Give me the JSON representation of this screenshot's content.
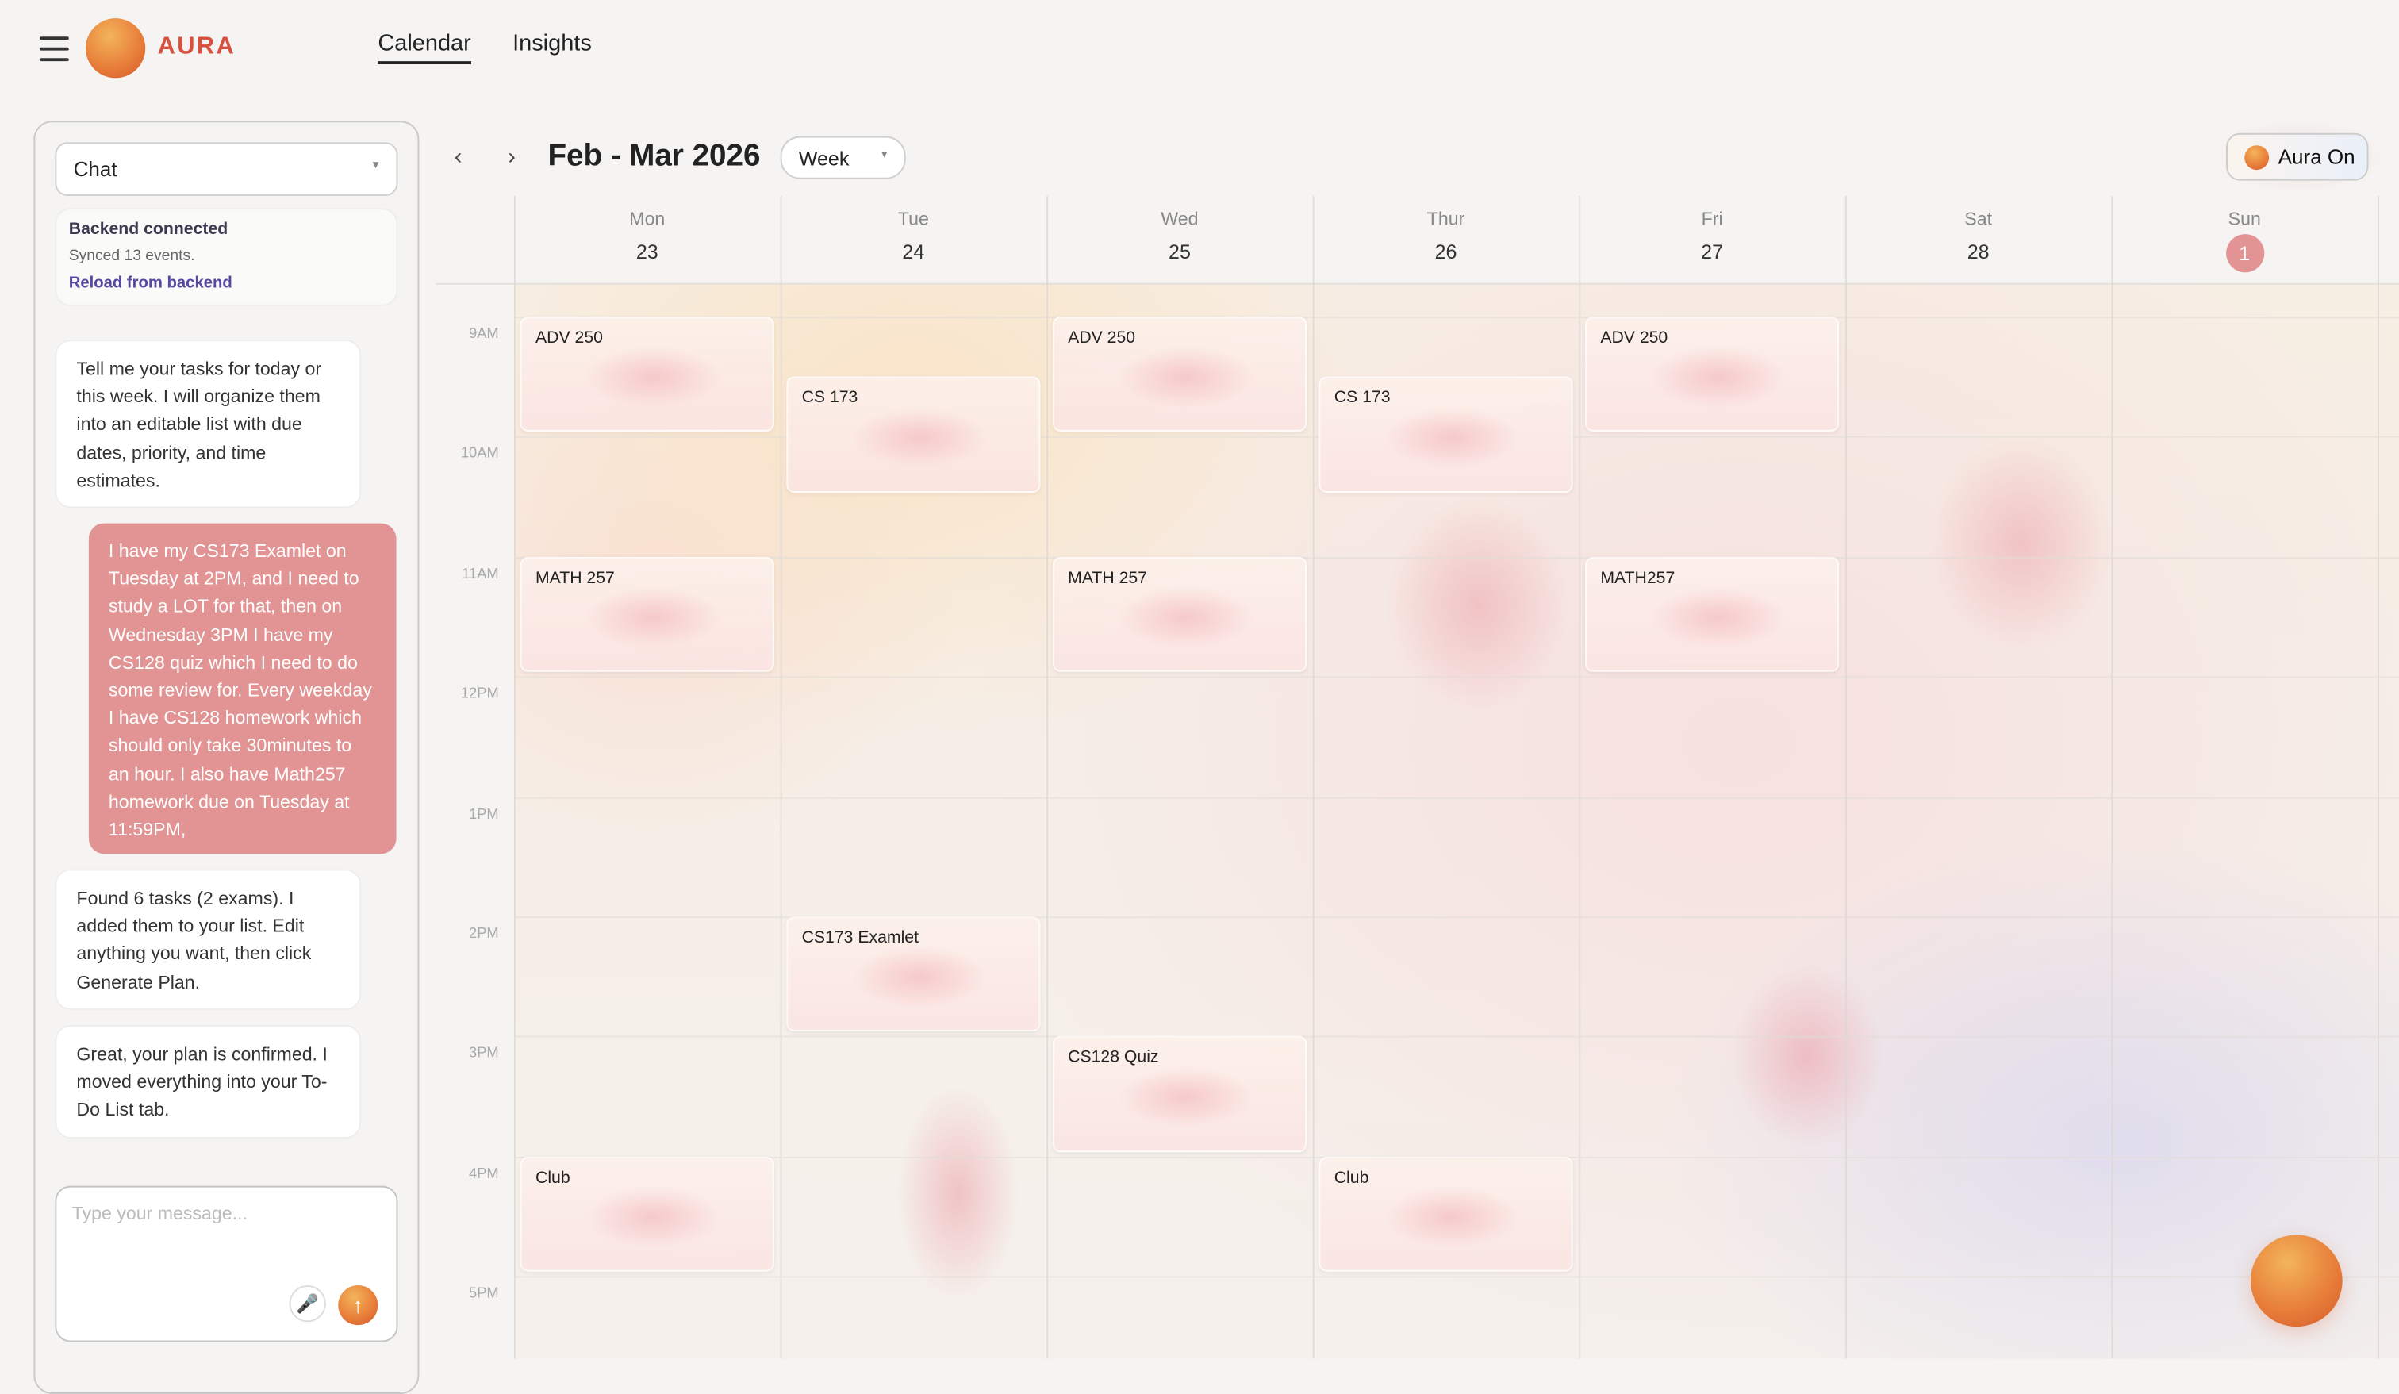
{
  "app": {
    "brand": "AURA",
    "menu_icon": "hamburger-icon"
  },
  "nav": {
    "tabs": [
      {
        "label": "Calendar",
        "active": true
      },
      {
        "label": "Insights",
        "active": false
      }
    ]
  },
  "chat": {
    "mode_select": "Chat",
    "status": {
      "title": "Backend connected",
      "detail": "Synced 13 events.",
      "reload": "Reload from backend"
    },
    "messages": [
      {
        "role": "assistant",
        "text": "Tell me your tasks for today or this week. I will organize them into an editable list with due dates, priority, and time estimates."
      },
      {
        "role": "user",
        "text": "I have my CS173 Examlet on Tuesday at 2PM, and I need to study a LOT for that, then on Wednesday 3PM I have my CS128 quiz which I need to do some review for. Every weekday I have CS128 homework which should only take 30minutes to an hour. I also have Math257 homework due on Tuesday at 11:59PM,"
      },
      {
        "role": "assistant",
        "text": "Found 6 tasks (2 exams). I added them to your list. Edit anything you want, then click Generate Plan."
      },
      {
        "role": "assistant",
        "text": "Great, your plan is confirmed. I moved everything into your To-Do List tab."
      }
    ],
    "input": {
      "value": "",
      "placeholder": "Type your message..."
    },
    "mic_icon": "microphone-icon",
    "send_icon": "arrow-up-icon",
    "mic_glyph": "🎤",
    "send_glyph": "↑"
  },
  "calendar": {
    "prev": "‹",
    "next": "›",
    "range_title": "Feb - Mar 2026",
    "view": "Week",
    "aura_toggle": "Aura On",
    "days": [
      {
        "name": "Mon",
        "date": "23"
      },
      {
        "name": "Tue",
        "date": "24"
      },
      {
        "name": "Wed",
        "date": "25"
      },
      {
        "name": "Thur",
        "date": "26"
      },
      {
        "name": "Fri",
        "date": "27"
      },
      {
        "name": "Sat",
        "date": "28"
      },
      {
        "name": "Sun",
        "date": "1",
        "today": true
      }
    ],
    "hours": [
      "9AM",
      "10AM",
      "11AM",
      "12PM",
      "1PM",
      "2PM",
      "3PM",
      "4PM",
      "5PM"
    ],
    "events": [
      {
        "title": "ADV 250",
        "day": 0,
        "start": 9,
        "end": 10
      },
      {
        "title": "CS 173",
        "day": 1,
        "start": 9.5,
        "end": 10.5
      },
      {
        "title": "ADV 250",
        "day": 2,
        "start": 9,
        "end": 10
      },
      {
        "title": "CS 173",
        "day": 3,
        "start": 9.5,
        "end": 10.5
      },
      {
        "title": "ADV 250",
        "day": 4,
        "start": 9,
        "end": 10
      },
      {
        "title": "MATH 257",
        "day": 0,
        "start": 11,
        "end": 12
      },
      {
        "title": "MATH 257",
        "day": 2,
        "start": 11,
        "end": 12
      },
      {
        "title": "MATH257",
        "day": 4,
        "start": 11,
        "end": 12
      },
      {
        "title": "CS173 Examlet",
        "day": 1,
        "start": 14,
        "end": 15
      },
      {
        "title": "CS128 Quiz",
        "day": 2,
        "start": 15,
        "end": 16
      },
      {
        "title": "Club",
        "day": 0,
        "start": 16,
        "end": 17
      },
      {
        "title": "Club",
        "day": 3,
        "start": 16,
        "end": 17
      }
    ],
    "today_color": "#e19493"
  },
  "colors": {
    "brand": "#d9503e",
    "user_bubble": "#e19493",
    "link": "#5549a3",
    "orb": "#e8803a"
  }
}
